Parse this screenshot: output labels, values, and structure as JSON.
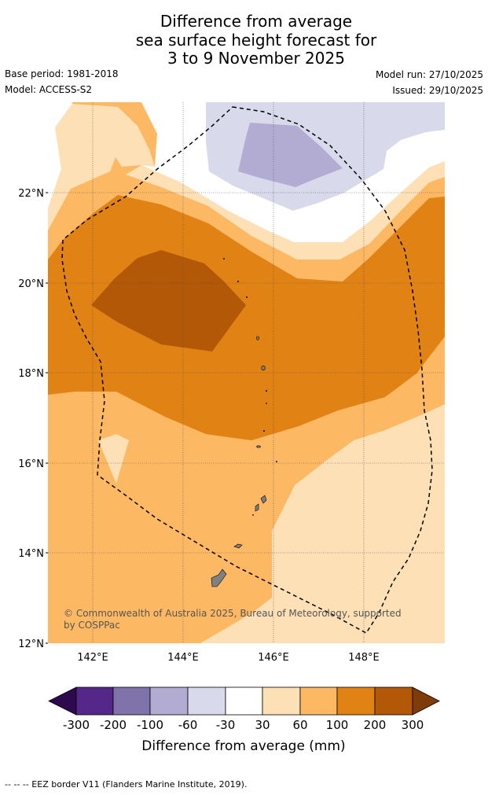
{
  "title": {
    "line1": "Difference from average",
    "line2": "sea surface height forecast for",
    "line3": "3 to 9 November 2025"
  },
  "meta": {
    "base_period": "Base period: 1981-2018",
    "model": "Model: ACCESS-S2",
    "model_run": "Model run: 27/10/2025",
    "issued": "Issued: 29/10/2025"
  },
  "map": {
    "lat_labels": [
      "22°N",
      "20°N",
      "18°N",
      "16°N",
      "14°N",
      "12°N"
    ],
    "lon_labels": [
      "142°E",
      "144°E",
      "146°E",
      "148°E"
    ],
    "copyright_line1": "© Commonwealth of Australia 2025, Bureau of Meteorology, supported",
    "copyright_line2": "by COSPPac",
    "colors": {
      "c_neg300": "#2d0a4e",
      "c_neg200": "#542788",
      "c_neg100": "#8073ac",
      "c_neg60": "#b2abd2",
      "c_neg30": "#d8daeb",
      "c_0": "#ffffff",
      "c_30": "#fee0b6",
      "c_60": "#fdb863",
      "c_100": "#e08214",
      "c_200": "#b35806",
      "c_300": "#7f3b08",
      "land": "#808080"
    }
  },
  "colorbar": {
    "tick_labels": [
      "-300",
      "-200",
      "-100",
      "-60",
      "-30",
      "30",
      "60",
      "100",
      "200",
      "300"
    ],
    "title": "Difference from average (mm)"
  },
  "footer": {
    "legend_text": "--  --  -- EEZ border V11 (Flanders Marine Institute, 2019)."
  }
}
